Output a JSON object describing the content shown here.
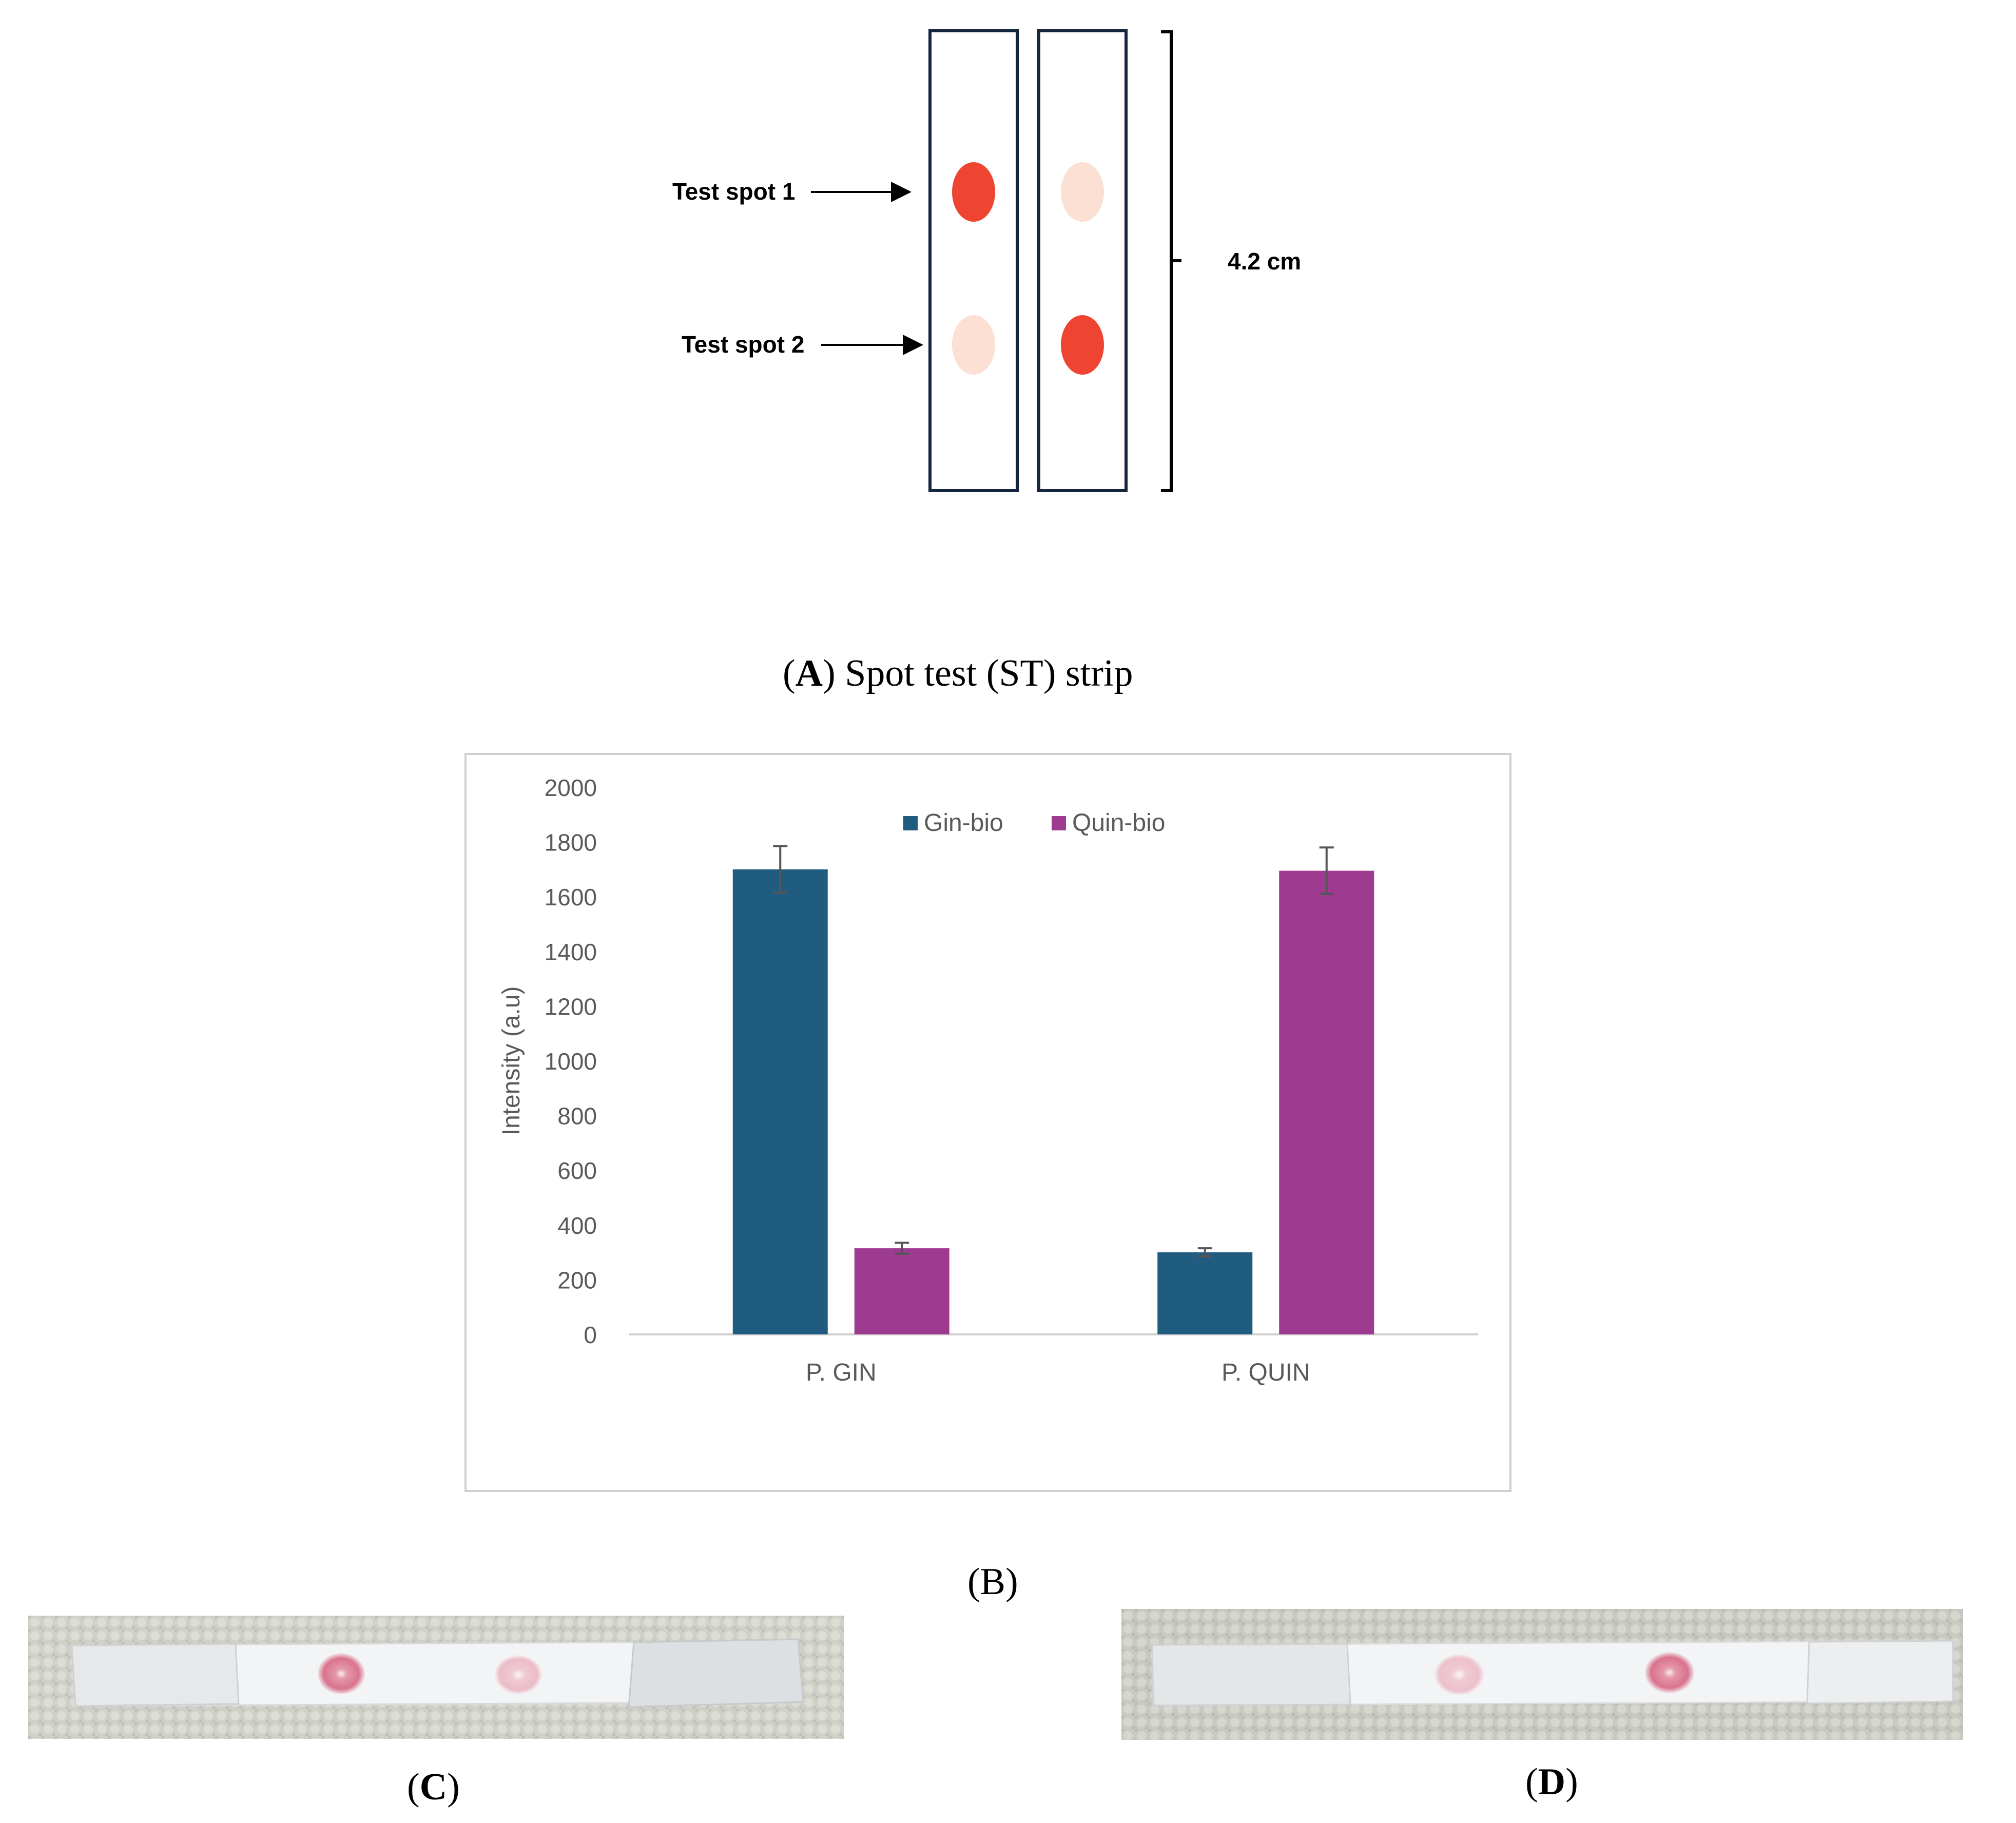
{
  "panel_a": {
    "spot1_label": "Test spot 1",
    "spot2_label": "Test spot 2",
    "length_label": "4.2 cm",
    "caption_letter": "A",
    "caption_text": "Spot test (ST) strip",
    "colors": {
      "strong_spot": "#ee4431",
      "faint_spot": "#fbe0d3",
      "strip_border": "#15253d"
    }
  },
  "chart_data": {
    "type": "bar",
    "title": "",
    "xlabel": "",
    "ylabel": "Intensity (a.u)",
    "ylim": [
      0,
      2000
    ],
    "yticks": [
      0,
      200,
      400,
      600,
      800,
      1000,
      1200,
      1400,
      1600,
      1800,
      2000
    ],
    "categories": [
      "P. GIN",
      "P. QUIN"
    ],
    "series": [
      {
        "name": "Gin-bio",
        "color": "#1f5c80",
        "values": [
          1700,
          300
        ],
        "errors": [
          85,
          15
        ]
      },
      {
        "name": "Quin-bio",
        "color": "#9e3a8f",
        "values": [
          315,
          1695
        ],
        "errors": [
          20,
          85
        ]
      }
    ],
    "legend": "top-center",
    "grid": false
  },
  "panel_b": {
    "caption": "(B)"
  },
  "panel_c": {
    "caption_letter": "C"
  },
  "panel_d": {
    "caption_letter": "D"
  }
}
